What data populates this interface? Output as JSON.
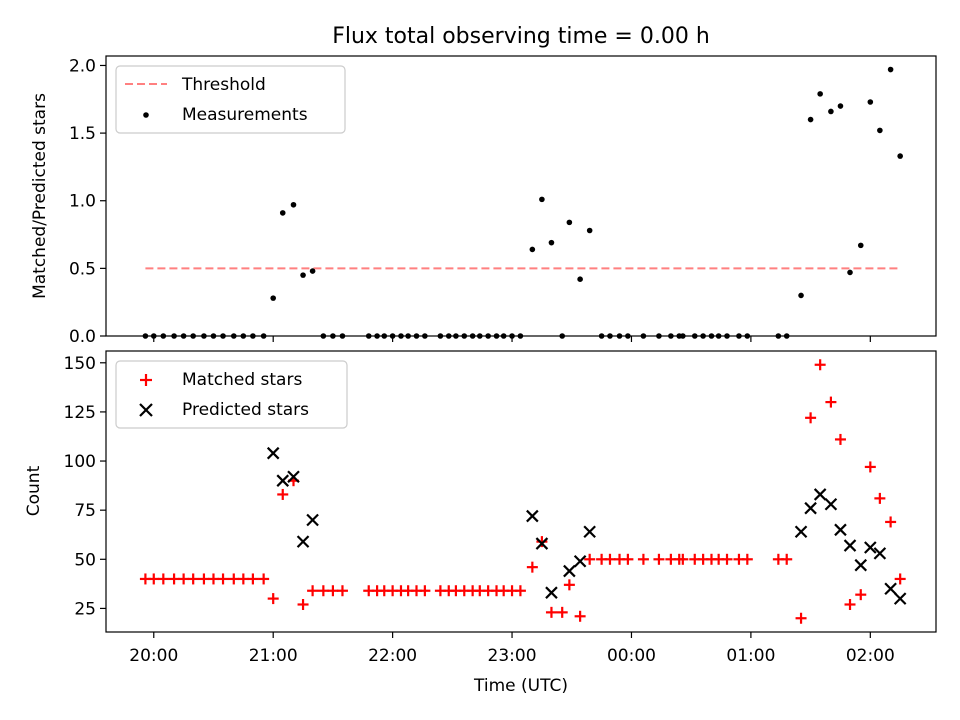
{
  "figure": {
    "title": "Flux total observing time = 0.00 h",
    "xlabel": "Time (UTC)",
    "x_tick_labels": [
      "20:00",
      "21:00",
      "22:00",
      "23:00",
      "00:00",
      "01:00",
      "02:00"
    ]
  },
  "top_panel": {
    "ylabel": "Matched/Predicted stars",
    "y_tick_labels": [
      "0.0",
      "0.5",
      "1.0",
      "1.5",
      "2.0"
    ],
    "legend": [
      {
        "label": "Threshold",
        "color": "#ff8080",
        "style": "dashed-line"
      },
      {
        "label": "Measurements",
        "color": "#000000",
        "style": "dot"
      }
    ]
  },
  "bottom_panel": {
    "ylabel": "Count",
    "y_tick_labels": [
      "25",
      "50",
      "75",
      "100",
      "125",
      "150"
    ],
    "legend": [
      {
        "label": "Matched stars",
        "color": "#ff0000",
        "style": "plus"
      },
      {
        "label": "Predicted stars",
        "color": "#000000",
        "style": "x"
      }
    ]
  },
  "chart_data": [
    {
      "type": "scatter",
      "title": "Flux total observing time = 0.00 h",
      "xlabel": "",
      "ylabel": "Matched/Predicted stars",
      "x_unit": "hours since 20:00 UTC",
      "xlim": [
        -0.4,
        6.55
      ],
      "ylim": [
        0.0,
        2.07
      ],
      "x_tick_labels": [
        "20:00",
        "21:00",
        "22:00",
        "23:00",
        "00:00",
        "01:00",
        "02:00"
      ],
      "grid": false,
      "legend_position": "upper left",
      "threshold": {
        "name": "Threshold",
        "y": 0.5,
        "x_range": [
          -0.07,
          6.25
        ],
        "color": "#ff8080"
      },
      "series": [
        {
          "name": "Measurements",
          "color": "#000000",
          "points": [
            [
              -0.07,
              0
            ],
            [
              0.0,
              0
            ],
            [
              0.08,
              0
            ],
            [
              0.17,
              0
            ],
            [
              0.25,
              0
            ],
            [
              0.33,
              0
            ],
            [
              0.42,
              0
            ],
            [
              0.5,
              0
            ],
            [
              0.58,
              0
            ],
            [
              0.67,
              0
            ],
            [
              0.75,
              0
            ],
            [
              0.83,
              0
            ],
            [
              0.92,
              0
            ],
            [
              1.0,
              0.28
            ],
            [
              1.08,
              0.91
            ],
            [
              1.17,
              0.97
            ],
            [
              1.25,
              0.45
            ],
            [
              1.33,
              0.48
            ],
            [
              1.42,
              0
            ],
            [
              1.5,
              0
            ],
            [
              1.58,
              0
            ],
            [
              1.8,
              0
            ],
            [
              1.87,
              0
            ],
            [
              1.93,
              0
            ],
            [
              2.0,
              0
            ],
            [
              2.07,
              0
            ],
            [
              2.13,
              0
            ],
            [
              2.2,
              0
            ],
            [
              2.27,
              0
            ],
            [
              2.4,
              0
            ],
            [
              2.47,
              0
            ],
            [
              2.53,
              0
            ],
            [
              2.6,
              0
            ],
            [
              2.67,
              0
            ],
            [
              2.73,
              0
            ],
            [
              2.8,
              0
            ],
            [
              2.87,
              0
            ],
            [
              2.93,
              0
            ],
            [
              3.0,
              0
            ],
            [
              3.07,
              0
            ],
            [
              3.17,
              0.64
            ],
            [
              3.25,
              1.01
            ],
            [
              3.33,
              0.69
            ],
            [
              3.42,
              0
            ],
            [
              3.48,
              0.84
            ],
            [
              3.57,
              0.42
            ],
            [
              3.65,
              0.78
            ],
            [
              3.75,
              0
            ],
            [
              3.82,
              0
            ],
            [
              3.9,
              0
            ],
            [
              3.97,
              0
            ],
            [
              4.1,
              0
            ],
            [
              4.23,
              0
            ],
            [
              4.33,
              0
            ],
            [
              4.4,
              0
            ],
            [
              4.43,
              0
            ],
            [
              4.53,
              0
            ],
            [
              4.6,
              0
            ],
            [
              4.67,
              0
            ],
            [
              4.73,
              0
            ],
            [
              4.8,
              0
            ],
            [
              4.9,
              0
            ],
            [
              4.97,
              0
            ],
            [
              5.23,
              0
            ],
            [
              5.3,
              0
            ],
            [
              5.42,
              0.3
            ],
            [
              5.5,
              1.6
            ],
            [
              5.58,
              1.79
            ],
            [
              5.67,
              1.66
            ],
            [
              5.75,
              1.7
            ],
            [
              5.83,
              0.47
            ],
            [
              5.92,
              0.67
            ],
            [
              6.0,
              1.73
            ],
            [
              6.08,
              1.52
            ],
            [
              6.17,
              1.97
            ],
            [
              6.25,
              1.33
            ]
          ]
        }
      ]
    },
    {
      "type": "scatter",
      "title": "",
      "xlabel": "Time (UTC)",
      "ylabel": "Count",
      "x_unit": "hours since 20:00 UTC",
      "xlim": [
        -0.4,
        6.55
      ],
      "ylim": [
        13,
        156
      ],
      "x_tick_labels": [
        "20:00",
        "21:00",
        "22:00",
        "23:00",
        "00:00",
        "01:00",
        "02:00"
      ],
      "grid": false,
      "legend_position": "upper left",
      "series": [
        {
          "name": "Matched stars",
          "marker": "plus",
          "color": "#ff0000",
          "points": [
            [
              -0.07,
              40
            ],
            [
              0.0,
              40
            ],
            [
              0.08,
              40
            ],
            [
              0.17,
              40
            ],
            [
              0.25,
              40
            ],
            [
              0.33,
              40
            ],
            [
              0.42,
              40
            ],
            [
              0.5,
              40
            ],
            [
              0.58,
              40
            ],
            [
              0.67,
              40
            ],
            [
              0.75,
              40
            ],
            [
              0.83,
              40
            ],
            [
              0.92,
              40
            ],
            [
              1.0,
              30
            ],
            [
              1.08,
              83
            ],
            [
              1.17,
              90
            ],
            [
              1.25,
              27
            ],
            [
              1.33,
              34
            ],
            [
              1.42,
              34
            ],
            [
              1.5,
              34
            ],
            [
              1.58,
              34
            ],
            [
              1.8,
              34
            ],
            [
              1.87,
              34
            ],
            [
              1.93,
              34
            ],
            [
              2.0,
              34
            ],
            [
              2.07,
              34
            ],
            [
              2.13,
              34
            ],
            [
              2.2,
              34
            ],
            [
              2.27,
              34
            ],
            [
              2.4,
              34
            ],
            [
              2.47,
              34
            ],
            [
              2.53,
              34
            ],
            [
              2.6,
              34
            ],
            [
              2.67,
              34
            ],
            [
              2.73,
              34
            ],
            [
              2.8,
              34
            ],
            [
              2.87,
              34
            ],
            [
              2.93,
              34
            ],
            [
              3.0,
              34
            ],
            [
              3.07,
              34
            ],
            [
              3.17,
              46
            ],
            [
              3.25,
              59
            ],
            [
              3.33,
              23
            ],
            [
              3.42,
              23
            ],
            [
              3.48,
              37
            ],
            [
              3.57,
              21
            ],
            [
              3.65,
              50
            ],
            [
              3.75,
              50
            ],
            [
              3.82,
              50
            ],
            [
              3.9,
              50
            ],
            [
              3.97,
              50
            ],
            [
              4.1,
              50
            ],
            [
              4.23,
              50
            ],
            [
              4.33,
              50
            ],
            [
              4.4,
              50
            ],
            [
              4.43,
              50
            ],
            [
              4.53,
              50
            ],
            [
              4.6,
              50
            ],
            [
              4.67,
              50
            ],
            [
              4.73,
              50
            ],
            [
              4.8,
              50
            ],
            [
              4.9,
              50
            ],
            [
              4.97,
              50
            ],
            [
              5.23,
              50
            ],
            [
              5.3,
              50
            ],
            [
              5.42,
              20
            ],
            [
              5.5,
              122
            ],
            [
              5.58,
              149
            ],
            [
              5.67,
              130
            ],
            [
              5.75,
              111
            ],
            [
              5.83,
              27
            ],
            [
              5.92,
              32
            ],
            [
              6.0,
              97
            ],
            [
              6.08,
              81
            ],
            [
              6.17,
              69
            ],
            [
              6.25,
              40
            ]
          ]
        },
        {
          "name": "Predicted stars",
          "marker": "x",
          "color": "#000000",
          "points": [
            [
              1.0,
              104
            ],
            [
              1.08,
              90
            ],
            [
              1.17,
              92
            ],
            [
              1.25,
              59
            ],
            [
              1.33,
              70
            ],
            [
              3.17,
              72
            ],
            [
              3.25,
              58
            ],
            [
              3.33,
              33
            ],
            [
              3.48,
              44
            ],
            [
              3.57,
              49
            ],
            [
              3.65,
              64
            ],
            [
              5.42,
              64
            ],
            [
              5.5,
              76
            ],
            [
              5.58,
              83
            ],
            [
              5.67,
              78
            ],
            [
              5.75,
              65
            ],
            [
              5.83,
              57
            ],
            [
              5.92,
              47
            ],
            [
              6.0,
              56
            ],
            [
              6.08,
              53
            ],
            [
              6.17,
              35
            ],
            [
              6.25,
              30
            ]
          ]
        }
      ]
    }
  ]
}
